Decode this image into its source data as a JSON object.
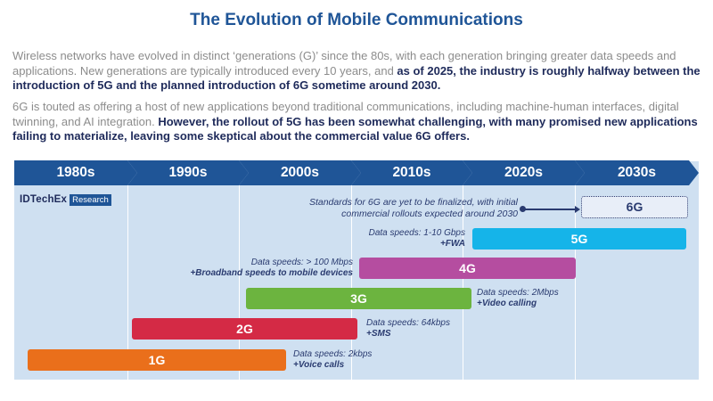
{
  "title": "The Evolution of Mobile Communications",
  "para1": {
    "plain": "Wireless networks have evolved in distinct ‘generations (G)’ since the 80s, with each generation bringing greater data speeds and applications. New generations are typically introduced every 10 years, and ",
    "bold": "as of 2025, the industry is roughly halfway between the introduction of 5G and the planned introduction of 6G sometime around 2030."
  },
  "para2": {
    "plain": "6G is touted as offering a host of new applications beyond traditional communications, including machine-human interfaces, digital twinning, and AI integration. ",
    "bold": "However, the rollout of 5G has been somewhat challenging, with many promised new applications failing to materialize, leaving some skeptical about the commercial value 6G offers."
  },
  "logo": {
    "name": "IDTechEx",
    "tag": "Research"
  },
  "decades": [
    "1980s",
    "1990s",
    "2000s",
    "2010s",
    "2020s",
    "2030s"
  ],
  "generations": {
    "g6": {
      "label": "6G",
      "note_line1": "Standards for 6G are yet to be finalized, with initial",
      "note_line2": "commercial rollouts expected around 2030"
    },
    "g5": {
      "label": "5G",
      "speed": "Data speeds: 1-10 Gbps",
      "feature": "+FWA"
    },
    "g4": {
      "label": "4G",
      "speed": "Data speeds: > 100 Mbps",
      "feature": "+Broadband speeds to mobile devices"
    },
    "g3": {
      "label": "3G",
      "speed": "Data speeds: 2Mbps",
      "feature": "+Video calling"
    },
    "g2": {
      "label": "2G",
      "speed": "Data speeds: 64kbps",
      "feature": "+SMS"
    },
    "g1": {
      "label": "1G",
      "speed": "Data speeds: 2kbps",
      "feature": "+Voice calls"
    }
  },
  "colors": {
    "title": "#1f5597",
    "band": "#1f5597",
    "background": "#cfe0f1",
    "g5": "#15b4e9",
    "g4": "#b54da0",
    "g3": "#6cb43f",
    "g2": "#d42a45",
    "g1": "#ea6f1b"
  }
}
